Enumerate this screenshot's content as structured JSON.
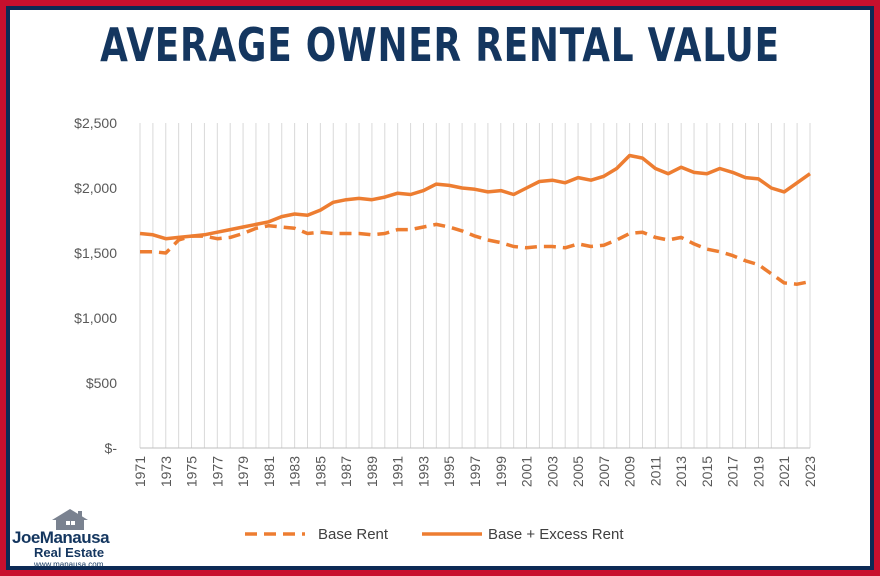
{
  "header": {
    "title": "AVERAGE OWNER RENTAL VALUE"
  },
  "logo": {
    "name_part1": "Joe",
    "name_part2": "Manausa",
    "subtitle": "Real Estate",
    "url": "www.manausa.com"
  },
  "colors": {
    "series": "#ed7d31",
    "frame_border": "#c8102e",
    "frame_navy": "#0d2a55",
    "title": "#14365f"
  },
  "chart_data": {
    "type": "line",
    "title": "",
    "xlabel": "",
    "ylabel": "",
    "ylim": [
      0,
      2500
    ],
    "y_ticks": [
      0,
      500,
      1000,
      1500,
      2000,
      2500
    ],
    "y_tick_labels": [
      "$-",
      "$500",
      "$1,000",
      "$1,500",
      "$2,000",
      "$2,500"
    ],
    "x": [
      1971,
      1972,
      1973,
      1974,
      1975,
      1976,
      1977,
      1978,
      1979,
      1980,
      1981,
      1982,
      1983,
      1984,
      1985,
      1986,
      1987,
      1988,
      1989,
      1990,
      1991,
      1992,
      1993,
      1994,
      1995,
      1996,
      1997,
      1998,
      1999,
      2000,
      2001,
      2002,
      2003,
      2004,
      2005,
      2006,
      2007,
      2008,
      2009,
      2010,
      2011,
      2012,
      2013,
      2014,
      2015,
      2016,
      2017,
      2018,
      2019,
      2020,
      2021,
      2022,
      2023
    ],
    "x_tick_labels": [
      "1971",
      "1973",
      "1975",
      "1977",
      "1979",
      "1981",
      "1983",
      "1985",
      "1987",
      "1989",
      "1991",
      "1993",
      "1995",
      "1997",
      "1999",
      "2001",
      "2003",
      "2005",
      "2007",
      "2009",
      "2011",
      "2013",
      "2015",
      "2017",
      "2019",
      "2021",
      "2023"
    ],
    "grid": "vertical",
    "legend_position": "bottom",
    "series": [
      {
        "name": "Base Rent",
        "style": "dashed",
        "values": [
          1510,
          1510,
          1500,
          1600,
          1630,
          1630,
          1610,
          1620,
          1650,
          1690,
          1710,
          1700,
          1690,
          1650,
          1660,
          1650,
          1650,
          1650,
          1640,
          1650,
          1680,
          1680,
          1700,
          1720,
          1700,
          1670,
          1630,
          1600,
          1580,
          1550,
          1540,
          1550,
          1550,
          1540,
          1570,
          1550,
          1560,
          1600,
          1650,
          1660,
          1620,
          1600,
          1620,
          1570,
          1530,
          1510,
          1480,
          1440,
          1410,
          1340,
          1270,
          1260,
          1280
        ]
      },
      {
        "name": "Base + Excess Rent",
        "style": "solid",
        "values": [
          1650,
          1640,
          1610,
          1620,
          1630,
          1640,
          1660,
          1680,
          1700,
          1720,
          1740,
          1780,
          1800,
          1790,
          1830,
          1890,
          1910,
          1920,
          1910,
          1930,
          1960,
          1950,
          1980,
          2030,
          2020,
          2000,
          1990,
          1970,
          1980,
          1950,
          2000,
          2050,
          2060,
          2040,
          2080,
          2060,
          2090,
          2150,
          2250,
          2230,
          2150,
          2110,
          2160,
          2120,
          2110,
          2150,
          2120,
          2080,
          2070,
          2000,
          1970,
          2040,
          2110
        ]
      }
    ]
  }
}
